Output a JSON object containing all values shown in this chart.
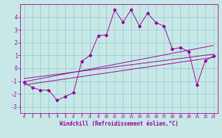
{
  "x_data": [
    0,
    1,
    2,
    3,
    4,
    5,
    6,
    7,
    8,
    9,
    10,
    11,
    12,
    13,
    14,
    15,
    16,
    17,
    18,
    19,
    20,
    21,
    22,
    23
  ],
  "y_main": [
    -1.1,
    -1.5,
    -1.7,
    -1.7,
    -2.5,
    -2.2,
    -1.9,
    0.55,
    1.0,
    2.55,
    2.6,
    4.55,
    3.6,
    4.55,
    3.3,
    4.3,
    3.55,
    3.3,
    1.5,
    1.6,
    1.3,
    -1.3,
    0.6,
    0.95
  ],
  "reg_line1_x": [
    0,
    23
  ],
  "reg_line1_y": [
    -1.05,
    1.78
  ],
  "reg_line2_x": [
    0,
    23
  ],
  "reg_line2_y": [
    -1.3,
    0.85
  ],
  "reg_line3_x": [
    0,
    23
  ],
  "reg_line3_y": [
    -0.8,
    1.1
  ],
  "line_color": "#990099",
  "bg_color": "#c8e8e8",
  "grid_color": "#99cccc",
  "xlabel": "Windchill (Refroidissement éolien,°C)",
  "ylim": [
    -3.5,
    5.0
  ],
  "xlim": [
    -0.5,
    23.5
  ],
  "yticks": [
    -3,
    -2,
    -1,
    0,
    1,
    2,
    3,
    4
  ],
  "xticks": [
    0,
    1,
    2,
    3,
    4,
    5,
    6,
    7,
    8,
    9,
    10,
    11,
    12,
    13,
    14,
    15,
    16,
    17,
    18,
    19,
    20,
    21,
    22,
    23
  ]
}
